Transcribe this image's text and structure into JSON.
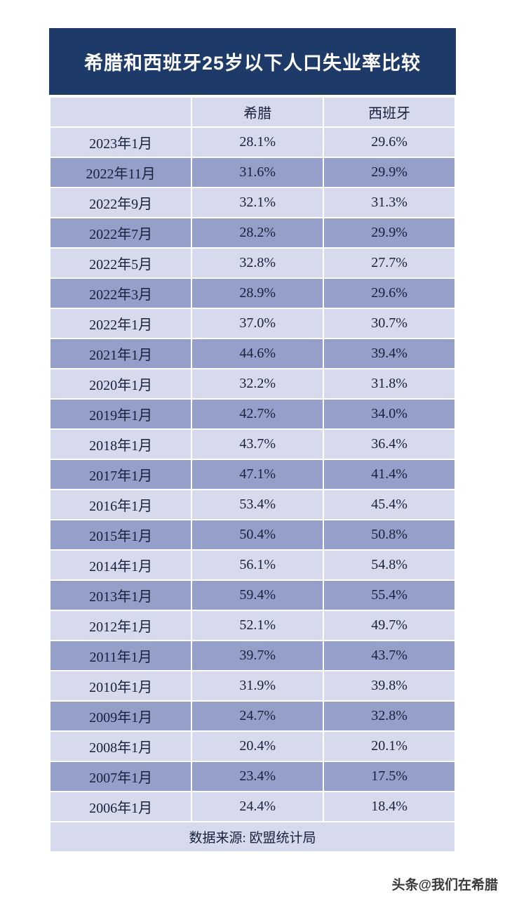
{
  "title": "希腊和西班牙25岁以下人口失业率比较",
  "footer": "数据来源: 欧盟统计局",
  "watermark": "头条@我们在希腊",
  "colors": {
    "title_bg": "#1e3a68",
    "title_text": "#ffffff",
    "row_light": "#d6daec",
    "row_dark": "#94a0ca",
    "cell_text": "#17213c"
  },
  "chart_data": {
    "type": "table",
    "title": "希腊和西班牙25岁以下人口失业率比较",
    "columns": [
      "",
      "希腊",
      "西班牙"
    ],
    "rows": [
      [
        "2023年1月",
        "28.1%",
        "29.6%"
      ],
      [
        "2022年11月",
        "31.6%",
        "29.9%"
      ],
      [
        "2022年9月",
        "32.1%",
        "31.3%"
      ],
      [
        "2022年7月",
        "28.2%",
        "29.9%"
      ],
      [
        "2022年5月",
        "32.8%",
        "27.7%"
      ],
      [
        "2022年3月",
        "28.9%",
        "29.6%"
      ],
      [
        "2022年1月",
        "37.0%",
        "30.7%"
      ],
      [
        "2021年1月",
        "44.6%",
        "39.4%"
      ],
      [
        "2020年1月",
        "32.2%",
        "31.8%"
      ],
      [
        "2019年1月",
        "42.7%",
        "34.0%"
      ],
      [
        "2018年1月",
        "43.7%",
        "36.4%"
      ],
      [
        "2017年1月",
        "47.1%",
        "41.4%"
      ],
      [
        "2016年1月",
        "53.4%",
        "45.4%"
      ],
      [
        "2015年1月",
        "50.4%",
        "50.8%"
      ],
      [
        "2014年1月",
        "56.1%",
        "54.8%"
      ],
      [
        "2013年1月",
        "59.4%",
        "55.4%"
      ],
      [
        "2012年1月",
        "52.1%",
        "49.7%"
      ],
      [
        "2011年1月",
        "39.7%",
        "43.7%"
      ],
      [
        "2010年1月",
        "31.9%",
        "39.8%"
      ],
      [
        "2009年1月",
        "24.7%",
        "32.8%"
      ],
      [
        "2008年1月",
        "20.4%",
        "20.1%"
      ],
      [
        "2007年1月",
        "23.4%",
        "17.5%"
      ],
      [
        "2006年1月",
        "24.4%",
        "18.4%"
      ]
    ],
    "source": "数据来源: 欧盟统计局"
  }
}
